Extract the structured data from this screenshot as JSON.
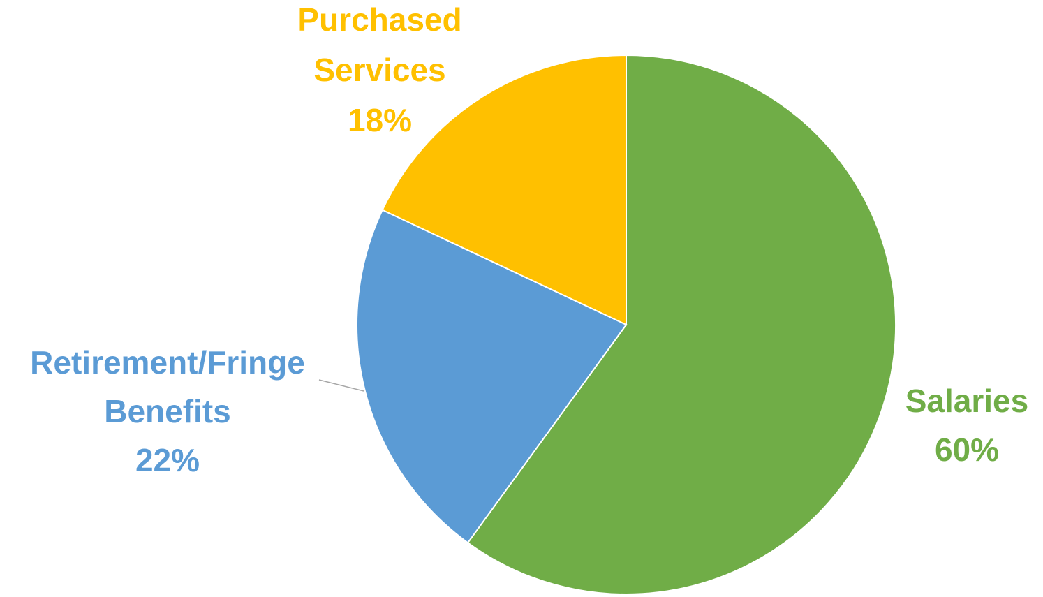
{
  "chart_data": {
    "type": "pie",
    "title": "",
    "legend": "none",
    "slices": [
      {
        "name": "Salaries",
        "value": 60,
        "percent_label": "60%",
        "color": "#70AD47",
        "label_lines": [
          "Salaries",
          "60%"
        ]
      },
      {
        "name": "Retirement/Fringe Benefits",
        "value": 22,
        "percent_label": "22%",
        "color": "#5B9BD5",
        "label_lines": [
          "Retirement/Fringe",
          "Benefits",
          "22%"
        ]
      },
      {
        "name": "Purchased Services",
        "value": 18,
        "percent_label": "18%",
        "color": "#FFC000",
        "label_lines": [
          "Purchased",
          "Services",
          "18%"
        ]
      }
    ]
  }
}
